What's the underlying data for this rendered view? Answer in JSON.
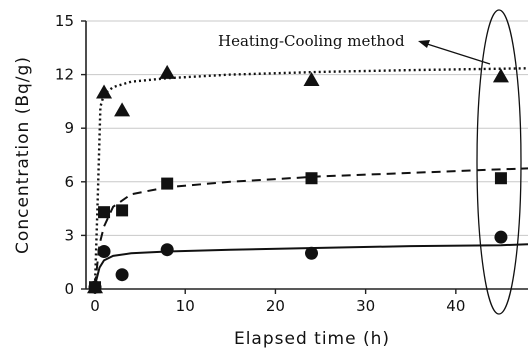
{
  "chart_data": {
    "type": "scatter",
    "xlabel": "Elapsed time (h)",
    "ylabel": "Concentration (Bq/g)",
    "xlim": [
      -1,
      48
    ],
    "ylim": [
      0,
      15
    ],
    "x_ticks": [
      0,
      10,
      20,
      30,
      40
    ],
    "y_ticks": [
      0,
      3,
      6,
      9,
      12,
      15
    ],
    "grid": "horizontal",
    "series": [
      {
        "marker": "triangle",
        "color": "#111111",
        "points": [
          [
            0,
            0.1
          ],
          [
            1,
            11.0
          ],
          [
            3,
            10.0
          ],
          [
            8,
            12.1
          ],
          [
            24,
            11.7
          ],
          [
            45,
            11.9
          ]
        ],
        "fit_style": "dotted",
        "fit": [
          [
            0,
            0.2
          ],
          [
            0.3,
            5.0
          ],
          [
            0.6,
            10.2
          ],
          [
            1,
            10.9
          ],
          [
            2,
            11.3
          ],
          [
            4,
            11.6
          ],
          [
            8,
            11.8
          ],
          [
            15,
            12.0
          ],
          [
            25,
            12.15
          ],
          [
            35,
            12.25
          ],
          [
            48,
            12.35
          ]
        ]
      },
      {
        "marker": "square",
        "color": "#111111",
        "points": [
          [
            0,
            0.1
          ],
          [
            1,
            4.3
          ],
          [
            3,
            4.4
          ],
          [
            8,
            5.9
          ],
          [
            24,
            6.2
          ],
          [
            45,
            6.2
          ]
        ],
        "fit_style": "dashed",
        "fit": [
          [
            0,
            0.2
          ],
          [
            0.5,
            2.5
          ],
          [
            1,
            3.5
          ],
          [
            2,
            4.6
          ],
          [
            4,
            5.3
          ],
          [
            8,
            5.7
          ],
          [
            15,
            6.0
          ],
          [
            25,
            6.3
          ],
          [
            35,
            6.5
          ],
          [
            45,
            6.7
          ],
          [
            48,
            6.75
          ]
        ]
      },
      {
        "marker": "circle",
        "color": "#111111",
        "points": [
          [
            0,
            0.1
          ],
          [
            1,
            2.1
          ],
          [
            3,
            0.8
          ],
          [
            8,
            2.2
          ],
          [
            24,
            2.0
          ],
          [
            45,
            2.9
          ]
        ],
        "fit_style": "solid",
        "fit": [
          [
            0,
            0.2
          ],
          [
            0.5,
            1.2
          ],
          [
            1,
            1.6
          ],
          [
            2,
            1.85
          ],
          [
            4,
            2.0
          ],
          [
            8,
            2.1
          ],
          [
            15,
            2.2
          ],
          [
            25,
            2.3
          ],
          [
            35,
            2.4
          ],
          [
            45,
            2.45
          ],
          [
            48,
            2.5
          ]
        ]
      }
    ],
    "annotations": [
      {
        "text": "Heating-Cooling method",
        "target": "ellipse around data at 45 h"
      }
    ]
  }
}
